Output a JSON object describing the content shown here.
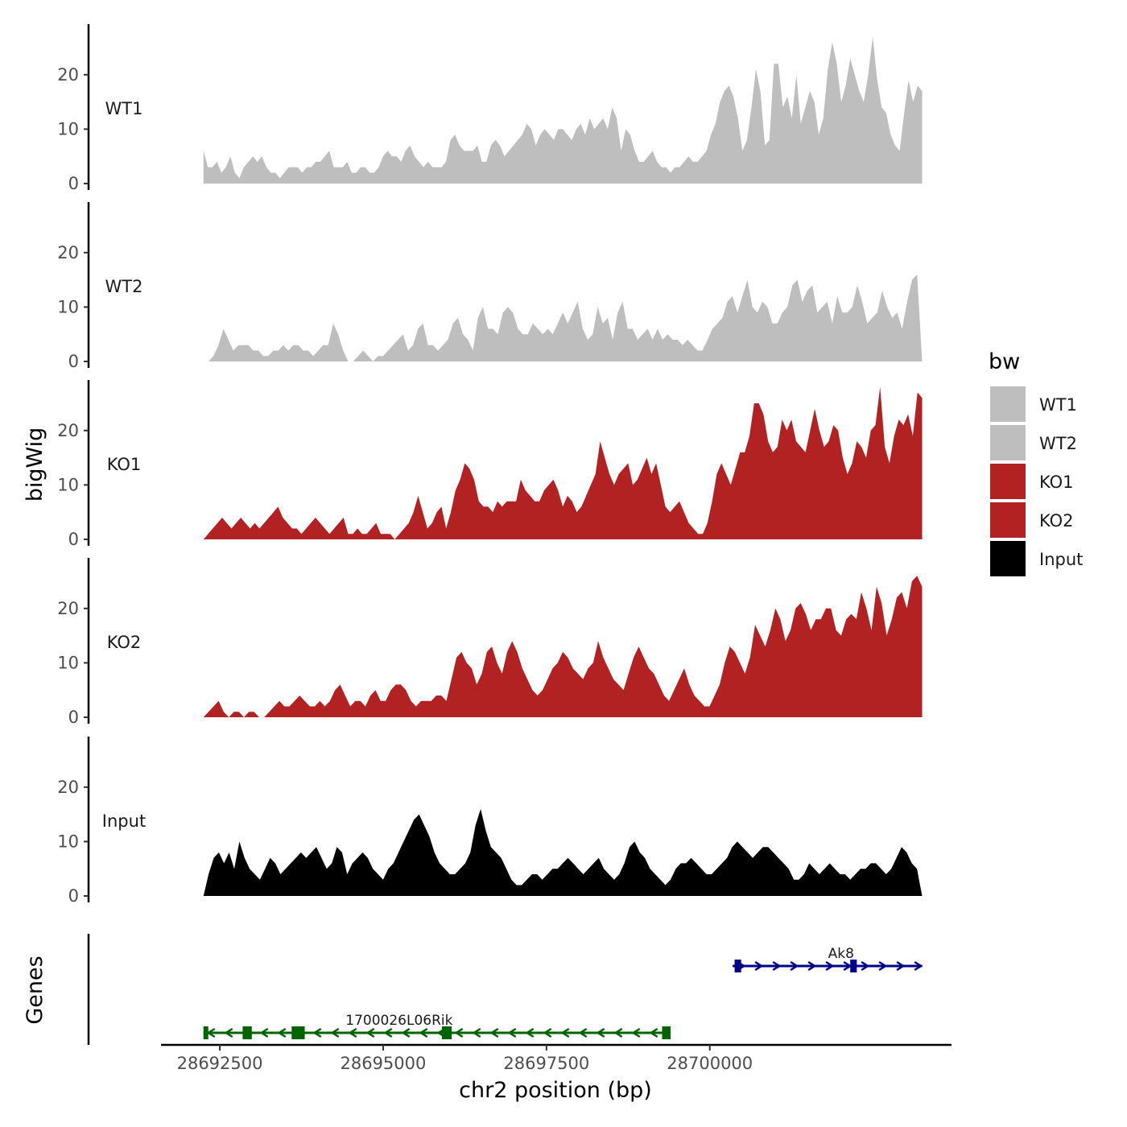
{
  "chart_data": {
    "type": "area",
    "ylabel": "bigWig",
    "genes_label": "Genes",
    "xlabel": "chr2 position (bp)",
    "xlim": [
      28691600,
      28703700
    ],
    "data_range": [
      28692250,
      28703250
    ],
    "ylim": [
      0,
      29
    ],
    "y_ticks": [
      0,
      10,
      20
    ],
    "x_ticks": [
      28692500,
      28695000,
      28697500,
      28700000
    ],
    "x_tick_labels": [
      "28692500",
      "28695000",
      "28697500",
      "28700000"
    ],
    "legend": {
      "title": "bw",
      "entries": [
        {
          "label": "WT1",
          "color": "#bebebe"
        },
        {
          "label": "WT2",
          "color": "#bebebe"
        },
        {
          "label": "KO1",
          "color": "#b22222"
        },
        {
          "label": "KO2",
          "color": "#b22222"
        },
        {
          "label": "Input",
          "color": "#000000"
        }
      ]
    },
    "tracks": [
      {
        "name": "WT1",
        "color": "#bebebe",
        "values": [
          6,
          3,
          3,
          4,
          2,
          3,
          5,
          2,
          1,
          3,
          4,
          5,
          4,
          5,
          3,
          2,
          2,
          1,
          2,
          3,
          3,
          3,
          2,
          3,
          3,
          4,
          4,
          5,
          6,
          3,
          3,
          3,
          4,
          2,
          2,
          3,
          3,
          2,
          2,
          3,
          5,
          6,
          5,
          5,
          4,
          6,
          7,
          5,
          4,
          3,
          4,
          3,
          3,
          3,
          4,
          8,
          9,
          7,
          6,
          6,
          6,
          7,
          4,
          4,
          7,
          8,
          7,
          5,
          6,
          7,
          8,
          9,
          11,
          10,
          7,
          9,
          10,
          9,
          8,
          10,
          10,
          9,
          8,
          10,
          11,
          9,
          12,
          10,
          11,
          12,
          10,
          14,
          12,
          6,
          10,
          9,
          6,
          4,
          4,
          5,
          6,
          4,
          3,
          3,
          2,
          3,
          3,
          4,
          5,
          4,
          4,
          5,
          6,
          9,
          11,
          15,
          17,
          18,
          16,
          12,
          6,
          8,
          14,
          21,
          17,
          7,
          8,
          22,
          22,
          14,
          16,
          12,
          20,
          11,
          14,
          17,
          15,
          9,
          12,
          21,
          26,
          22,
          15,
          18,
          23,
          20,
          17,
          15,
          20,
          27,
          19,
          14,
          13,
          9,
          7,
          6,
          13,
          19,
          15,
          18,
          17
        ]
      },
      {
        "name": "WT2",
        "color": "#bebebe",
        "values": [
          0,
          0,
          1,
          3,
          6,
          4,
          2,
          3,
          3,
          3,
          2,
          2,
          1,
          1,
          2,
          2,
          3,
          2,
          3,
          3,
          2,
          2,
          1,
          2,
          3,
          3,
          7,
          5,
          2,
          0,
          0,
          1,
          2,
          1,
          0,
          1,
          1,
          2,
          3,
          4,
          5,
          2,
          3,
          6,
          7,
          3,
          3,
          2,
          3,
          4,
          7,
          8,
          5,
          4,
          2,
          8,
          10,
          6,
          6,
          5,
          9,
          10,
          9,
          6,
          5,
          5,
          7,
          6,
          5,
          6,
          5,
          7,
          9,
          7,
          9,
          11,
          6,
          4,
          5,
          10,
          7,
          8,
          4,
          9,
          11,
          6,
          6,
          4,
          5,
          6,
          4,
          6,
          4,
          5,
          4,
          4,
          3,
          4,
          3,
          2,
          2,
          4,
          6,
          7,
          8,
          11,
          12,
          9,
          12,
          15,
          10,
          9,
          11,
          10,
          7,
          7,
          9,
          10,
          14,
          15,
          11,
          13,
          14,
          9,
          10,
          11,
          7,
          12,
          9,
          9,
          10,
          14,
          11,
          7,
          8,
          9,
          13,
          10,
          8,
          9,
          6,
          11,
          15,
          16,
          0
        ]
      },
      {
        "name": "KO1",
        "color": "#b22222",
        "values": [
          0,
          1,
          2,
          3,
          4,
          3,
          2,
          3,
          4,
          3,
          2,
          3,
          2,
          3,
          4,
          5,
          6,
          4,
          3,
          2,
          2,
          1,
          2,
          3,
          4,
          3,
          2,
          1,
          2,
          3,
          4,
          1,
          1,
          2,
          1,
          1,
          2,
          3,
          1,
          1,
          1,
          0,
          1,
          2,
          3,
          5,
          8,
          5,
          2,
          3,
          5,
          6,
          2,
          5,
          9,
          11,
          14,
          13,
          11,
          7,
          6,
          6,
          5,
          7,
          6,
          7,
          7,
          7,
          11,
          9,
          8,
          7,
          7,
          9,
          10,
          11,
          9,
          6,
          8,
          7,
          5,
          6,
          8,
          10,
          12,
          18,
          15,
          12,
          10,
          12,
          13,
          14,
          10,
          11,
          13,
          15,
          12,
          14,
          10,
          6,
          5,
          6,
          7,
          5,
          3,
          2,
          1,
          1,
          3,
          7,
          12,
          14,
          12,
          10,
          13,
          16,
          16,
          19,
          25,
          25,
          23,
          18,
          16,
          17,
          22,
          20,
          22,
          18,
          17,
          16,
          20,
          24,
          20,
          17,
          18,
          21,
          20,
          15,
          12,
          14,
          18,
          17,
          15,
          20,
          21,
          28,
          17,
          14,
          19,
          22,
          21,
          23,
          19,
          27,
          26
        ]
      },
      {
        "name": "KO2",
        "color": "#b22222",
        "values": [
          0,
          1,
          2,
          3,
          1,
          0,
          1,
          1,
          0,
          1,
          1,
          0,
          0,
          1,
          2,
          3,
          2,
          2,
          3,
          4,
          3,
          2,
          2,
          3,
          2,
          3,
          5,
          6,
          4,
          2,
          3,
          3,
          2,
          4,
          5,
          3,
          3,
          5,
          6,
          6,
          5,
          3,
          2,
          3,
          3,
          3,
          4,
          4,
          3,
          7,
          11,
          12,
          10,
          9,
          6,
          8,
          12,
          13,
          10,
          8,
          12,
          14,
          12,
          9,
          7,
          5,
          4,
          5,
          7,
          9,
          10,
          12,
          11,
          9,
          8,
          7,
          9,
          10,
          14,
          11,
          9,
          7,
          6,
          5,
          8,
          11,
          13,
          11,
          9,
          8,
          6,
          4,
          3,
          5,
          7,
          9,
          6,
          4,
          3,
          2,
          2,
          4,
          6,
          10,
          13,
          12,
          10,
          8,
          11,
          17,
          15,
          13,
          16,
          20,
          18,
          14,
          16,
          20,
          21,
          19,
          16,
          18,
          18,
          20,
          20,
          16,
          15,
          18,
          19,
          18,
          23,
          20,
          16,
          24,
          21,
          15,
          18,
          22,
          23,
          20,
          25,
          26,
          24
        ]
      },
      {
        "name": "Input",
        "color": "#000000",
        "values": [
          0,
          4,
          7,
          8,
          6,
          8,
          5,
          10,
          7,
          5,
          4,
          3,
          5,
          7,
          6,
          4,
          5,
          6,
          7,
          8,
          7,
          8,
          9,
          7,
          5,
          6,
          9,
          8,
          4,
          6,
          7,
          8,
          7,
          5,
          4,
          3,
          5,
          6,
          8,
          10,
          12,
          14,
          15,
          13,
          11,
          8,
          6,
          5,
          4,
          4,
          5,
          6,
          8,
          13,
          16,
          12,
          9,
          8,
          7,
          5,
          3,
          2,
          2,
          3,
          4,
          4,
          3,
          4,
          5,
          5,
          6,
          7,
          6,
          5,
          4,
          5,
          6,
          7,
          5,
          4,
          3,
          4,
          6,
          9,
          10,
          8,
          7,
          5,
          4,
          3,
          2,
          3,
          5,
          6,
          6,
          7,
          6,
          5,
          4,
          4,
          5,
          6,
          7,
          9,
          10,
          9,
          8,
          7,
          8,
          9,
          9,
          8,
          7,
          6,
          5,
          3,
          3,
          4,
          6,
          5,
          4,
          5,
          6,
          5,
          4,
          4,
          3,
          4,
          5,
          5,
          6,
          6,
          5,
          4,
          5,
          7,
          9,
          8,
          6,
          5,
          0
        ]
      }
    ],
    "genes": [
      {
        "name": "1700026L06Rik",
        "color": "#006400",
        "strand": "-",
        "start": 28692250,
        "end": 28699400,
        "exons": [
          [
            28692250,
            28692300
          ],
          [
            28692850,
            28692990
          ],
          [
            28693600,
            28693800
          ],
          [
            28695900,
            28696050
          ],
          [
            28699270,
            28699400
          ]
        ]
      },
      {
        "name": "Ak8",
        "color": "#00008b",
        "strand": "+",
        "start": 28700350,
        "end": 28703250,
        "exons": [
          [
            28700380,
            28700480
          ],
          [
            28702150,
            28702250
          ]
        ]
      }
    ]
  }
}
